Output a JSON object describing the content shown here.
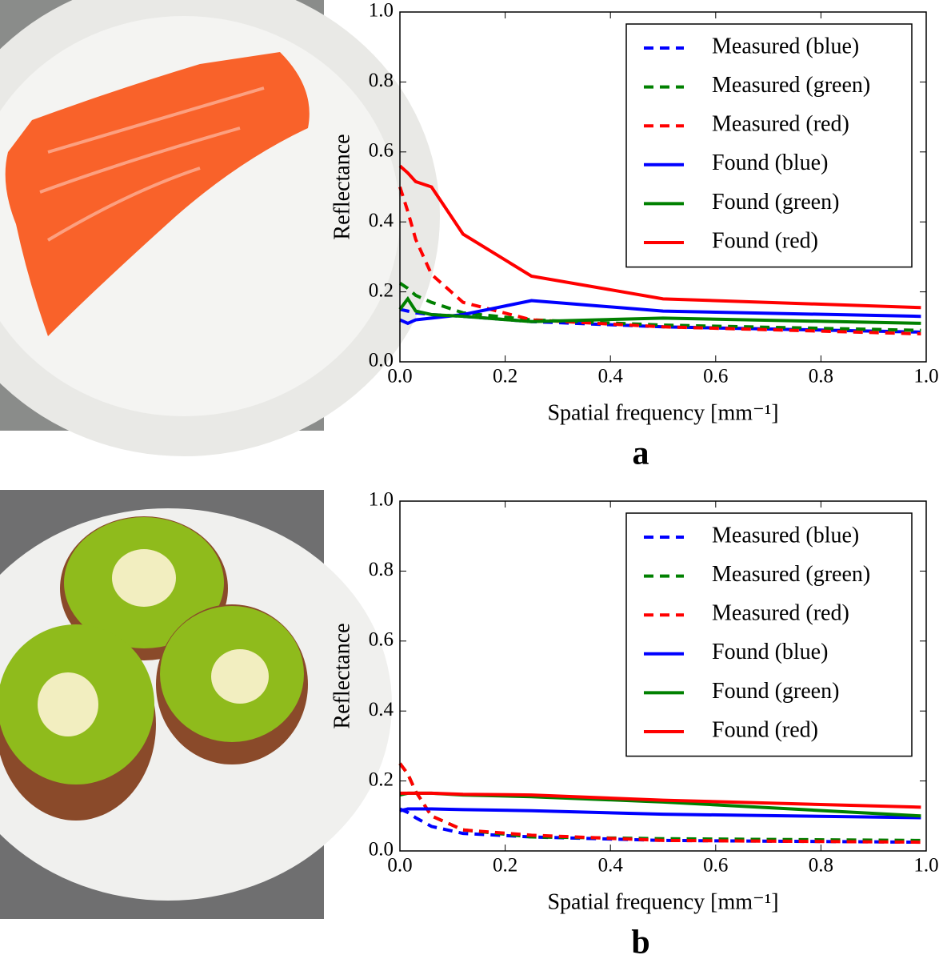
{
  "chart_data": [
    {
      "type": "line",
      "panel_label": "a",
      "xlabel": "Spatial frequency [mm⁻¹]",
      "ylabel": "Reflectance",
      "x": [
        0,
        0.015,
        0.03,
        0.06,
        0.12,
        0.25,
        0.5,
        0.99
      ],
      "xlim": [
        0,
        1
      ],
      "ylim": [
        0,
        1
      ],
      "xticks": [
        {
          "value": 0,
          "label": "0.0"
        },
        {
          "value": 0.2,
          "label": "0.2"
        },
        {
          "value": 0.4,
          "label": "0.4"
        },
        {
          "value": 0.6,
          "label": "0.6"
        },
        {
          "value": 0.8,
          "label": "0.8"
        },
        {
          "value": 1,
          "label": "1.0"
        }
      ],
      "yticks": [
        {
          "value": 0,
          "label": "0.0"
        },
        {
          "value": 0.2,
          "label": "0.2"
        },
        {
          "value": 0.4,
          "label": "0.4"
        },
        {
          "value": 0.6,
          "label": "0.6"
        },
        {
          "value": 0.8,
          "label": "0.8"
        },
        {
          "value": 1,
          "label": "1.0"
        }
      ],
      "legend": "upper right",
      "series": [
        {
          "name": "Measured (blue)",
          "color": "#0000ff",
          "linestyle": "dashed",
          "values": [
            0.15,
            0.145,
            0.14,
            0.135,
            0.13,
            0.115,
            0.1,
            0.085
          ]
        },
        {
          "name": "Measured (green)",
          "color": "#008000",
          "linestyle": "dashed",
          "values": [
            0.225,
            0.21,
            0.19,
            0.17,
            0.14,
            0.12,
            0.105,
            0.09
          ]
        },
        {
          "name": "Measured (red)",
          "color": "#ff0000",
          "linestyle": "dashed",
          "values": [
            0.5,
            0.43,
            0.35,
            0.25,
            0.17,
            0.12,
            0.1,
            0.08
          ]
        },
        {
          "name": "Found (blue)",
          "color": "#0000ff",
          "linestyle": "solid",
          "values": [
            0.12,
            0.11,
            0.12,
            0.125,
            0.135,
            0.175,
            0.145,
            0.13
          ]
        },
        {
          "name": "Found (green)",
          "color": "#008000",
          "linestyle": "solid",
          "values": [
            0.15,
            0.18,
            0.145,
            0.135,
            0.13,
            0.115,
            0.125,
            0.11
          ]
        },
        {
          "name": "Found (red)",
          "color": "#ff0000",
          "linestyle": "solid",
          "values": [
            0.56,
            0.54,
            0.515,
            0.5,
            0.365,
            0.245,
            0.18,
            0.155
          ]
        }
      ]
    },
    {
      "type": "line",
      "panel_label": "b",
      "xlabel": "Spatial frequency [mm⁻¹]",
      "ylabel": "Reflectance",
      "x": [
        0,
        0.015,
        0.03,
        0.06,
        0.12,
        0.25,
        0.5,
        0.99
      ],
      "xlim": [
        0,
        1
      ],
      "ylim": [
        0,
        1
      ],
      "xticks": [
        {
          "value": 0,
          "label": "0.0"
        },
        {
          "value": 0.2,
          "label": "0.2"
        },
        {
          "value": 0.4,
          "label": "0.4"
        },
        {
          "value": 0.6,
          "label": "0.6"
        },
        {
          "value": 0.8,
          "label": "0.8"
        },
        {
          "value": 1,
          "label": "1.0"
        }
      ],
      "yticks": [
        {
          "value": 0,
          "label": "0.0"
        },
        {
          "value": 0.2,
          "label": "0.2"
        },
        {
          "value": 0.4,
          "label": "0.4"
        },
        {
          "value": 0.6,
          "label": "0.6"
        },
        {
          "value": 0.8,
          "label": "0.8"
        },
        {
          "value": 1,
          "label": "1.0"
        }
      ],
      "legend": "upper right",
      "series": [
        {
          "name": "Measured (blue)",
          "color": "#0000ff",
          "linestyle": "dashed",
          "values": [
            0.12,
            0.11,
            0.095,
            0.07,
            0.05,
            0.04,
            0.03,
            0.025
          ]
        },
        {
          "name": "Measured (green)",
          "color": "#008000",
          "linestyle": "dashed",
          "values": [
            0.25,
            0.22,
            0.17,
            0.1,
            0.06,
            0.04,
            0.035,
            0.03
          ]
        },
        {
          "name": "Measured (red)",
          "color": "#ff0000",
          "linestyle": "dashed",
          "values": [
            0.25,
            0.22,
            0.17,
            0.1,
            0.06,
            0.045,
            0.03,
            0.025
          ]
        },
        {
          "name": "Found (blue)",
          "color": "#0000ff",
          "linestyle": "solid",
          "values": [
            0.115,
            0.12,
            0.12,
            0.12,
            0.118,
            0.115,
            0.105,
            0.095
          ]
        },
        {
          "name": "Found (green)",
          "color": "#008000",
          "linestyle": "solid",
          "values": [
            0.16,
            0.165,
            0.165,
            0.165,
            0.16,
            0.155,
            0.14,
            0.1
          ]
        },
        {
          "name": "Found (red)",
          "color": "#ff0000",
          "linestyle": "solid",
          "values": [
            0.165,
            0.165,
            0.165,
            0.165,
            0.162,
            0.16,
            0.145,
            0.125
          ]
        }
      ]
    }
  ]
}
